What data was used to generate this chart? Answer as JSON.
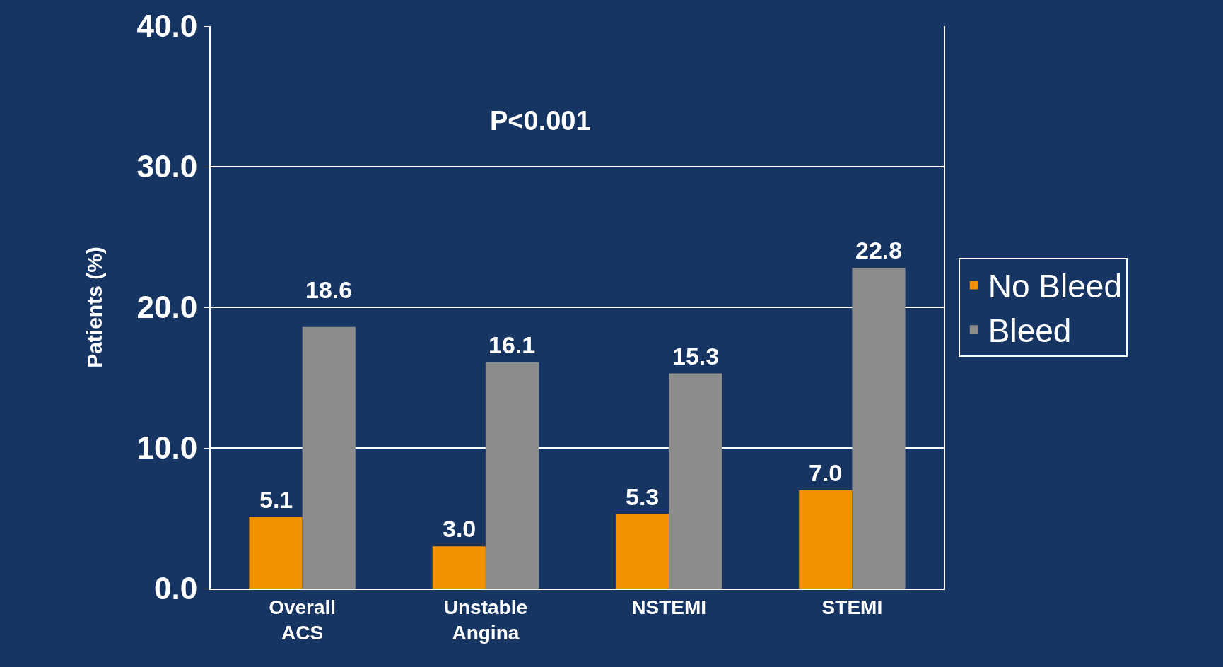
{
  "chart_data": {
    "type": "bar",
    "ylabel": "Patients (%)",
    "categories": [
      "Overall ACS",
      "Unstable Angina",
      "NSTEMI",
      "STEMI"
    ],
    "series": [
      {
        "name": "No Bleed",
        "color": "#f39200",
        "values": [
          5.1,
          3.0,
          5.3,
          7.0
        ],
        "value_labels": [
          "5.1",
          "3.0",
          "5.3",
          "7.0"
        ]
      },
      {
        "name": "Bleed",
        "color": "#8c8c8c",
        "values": [
          18.6,
          16.1,
          15.3,
          22.8
        ],
        "value_labels": [
          "18.6",
          "16.1",
          "15.3",
          "22.8"
        ]
      }
    ],
    "ylim": [
      0,
      40
    ],
    "yticks": [
      {
        "value": 0,
        "label": "0.0"
      },
      {
        "value": 10,
        "label": "10.0"
      },
      {
        "value": 20,
        "label": "20.0"
      },
      {
        "value": 30,
        "label": "30.0"
      },
      {
        "value": 40,
        "label": "40.0"
      }
    ],
    "grid": "y",
    "legend": "right",
    "annotations": [
      "P<0.001"
    ]
  }
}
